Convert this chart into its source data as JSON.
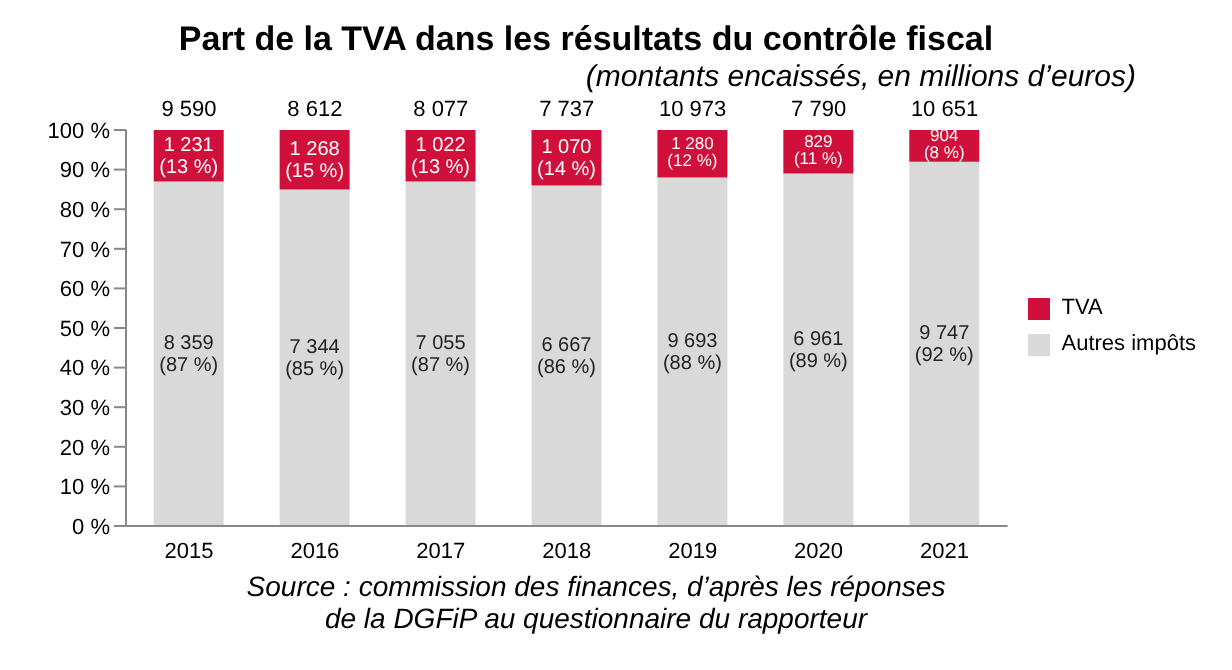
{
  "chart_data": {
    "type": "bar",
    "title": "Part de la TVA dans les résultats du contrôle fiscal",
    "subtitle": "(montants encaissés, en millions d’euros)",
    "categories": [
      "2015",
      "2016",
      "2017",
      "2018",
      "2019",
      "2020",
      "2021"
    ],
    "stacked": true,
    "series": [
      {
        "name": "Autres impôts",
        "color": "#d9d9d9",
        "values": [
          87,
          85,
          87,
          86,
          88,
          89,
          92
        ],
        "value_labels": [
          "8 359\n(87 %)",
          "7 344\n(85 %)",
          "7 055\n(87 %)",
          "6 667\n(86 %)",
          "9 693\n(88 %)",
          "6 961\n(89 %)",
          "9 747\n(92 %)"
        ]
      },
      {
        "name": "TVA",
        "color": "#d0103a",
        "values": [
          13,
          15,
          13,
          14,
          12,
          11,
          8
        ],
        "value_labels": [
          "1 231\n(13 %)",
          "1 268\n(15 %)",
          "1 022\n(13 %)",
          "1 070\n(14 %)",
          "1 280\n(12 %)",
          "829\n(11 %)",
          "904\n(8 %)"
        ]
      }
    ],
    "ylim": [
      0,
      100
    ],
    "yticks": [
      {
        "value": 0,
        "label": "0 %"
      },
      {
        "value": 10,
        "label": "10 %"
      },
      {
        "value": 20,
        "label": "20 %"
      },
      {
        "value": 30,
        "label": "30 %"
      },
      {
        "value": 40,
        "label": "40 %"
      },
      {
        "value": 50,
        "label": "50 %"
      },
      {
        "value": 60,
        "label": "60 %"
      },
      {
        "value": 70,
        "label": "70 %"
      },
      {
        "value": 80,
        "label": "80 %"
      },
      {
        "value": 90,
        "label": "90 %"
      },
      {
        "value": 100,
        "label": "100 %"
      }
    ],
    "legend": "right",
    "annotations": [
      {
        "text": "9 590",
        "x": "2015",
        "y": 100
      },
      {
        "text": "8 612",
        "x": "2016",
        "y": 100
      },
      {
        "text": "8 077",
        "x": "2017",
        "y": 100
      },
      {
        "text": "7 737",
        "x": "2018",
        "y": 100
      },
      {
        "text": "10 973",
        "x": "2019",
        "y": 100
      },
      {
        "text": "7 790",
        "x": "2020",
        "y": 100
      },
      {
        "text": "10 651",
        "x": "2021",
        "y": 100
      },
      "Source : commission des finances, d’après les réponses",
      "de la DGFiP au questionnaire du rapporteur"
    ]
  }
}
